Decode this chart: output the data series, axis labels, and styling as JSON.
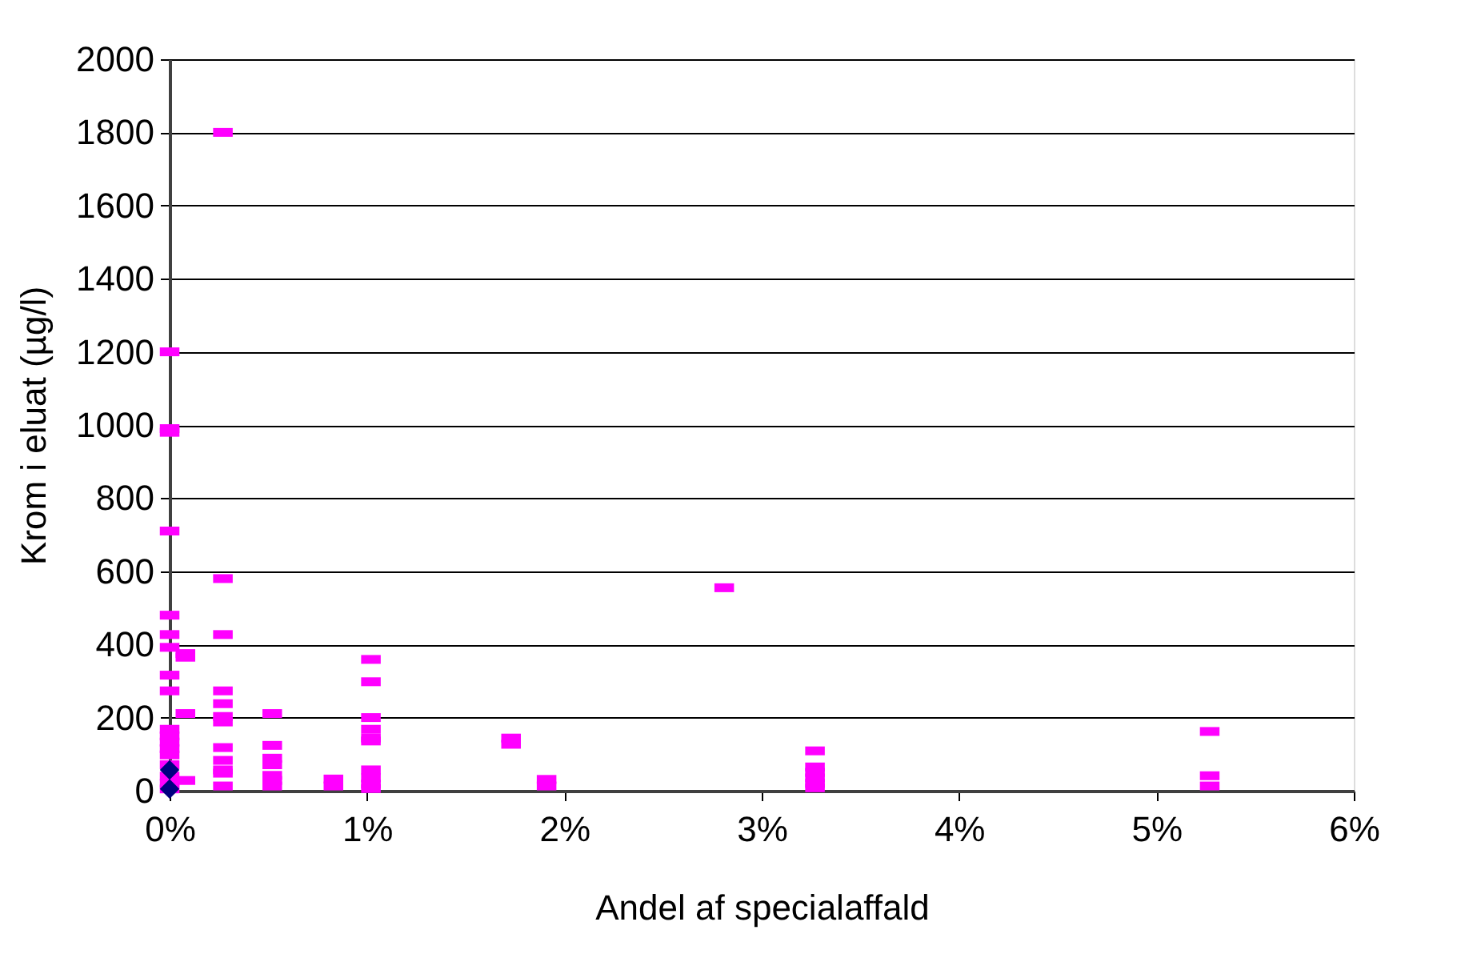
{
  "chart_data": {
    "type": "scatter",
    "xlabel": "Andel af specialaffald",
    "ylabel": "Krom i eluat (µg/l)",
    "xlim": [
      0,
      6
    ],
    "ylim": [
      0,
      2000
    ],
    "xticks": [
      {
        "value": 0,
        "label": "0%"
      },
      {
        "value": 1,
        "label": "1%"
      },
      {
        "value": 2,
        "label": "2%"
      },
      {
        "value": 3,
        "label": "3%"
      },
      {
        "value": 4,
        "label": "4%"
      },
      {
        "value": 5,
        "label": "5%"
      },
      {
        "value": 6,
        "label": "6%"
      }
    ],
    "yticks": [
      0,
      200,
      400,
      600,
      800,
      1000,
      1200,
      1400,
      1600,
      1800,
      2000
    ],
    "grid": "y",
    "series": [
      {
        "color": "#ff00ff",
        "x": [
          0,
          0,
          0,
          0,
          0,
          0,
          0,
          0,
          0,
          0,
          0,
          0,
          0,
          0,
          0,
          0,
          0,
          0,
          0.08,
          0.08,
          0.08,
          0.08,
          0.27,
          0.27,
          0.27,
          0.27,
          0.27,
          0.27,
          0.27,
          0.27,
          0.27,
          0.27,
          0.27,
          0.27,
          0.52,
          0.52,
          0.52,
          0.52,
          0.52,
          0.52,
          0.52,
          0.83,
          0.83,
          1.02,
          1.02,
          1.02,
          1.02,
          1.02,
          1.02,
          1.02,
          1.02,
          1.02,
          1.02,
          1.73,
          1.73,
          1.91,
          1.91,
          2.81,
          3.27,
          3.27,
          3.27,
          3.27,
          3.27,
          3.27,
          5.27,
          5.27,
          5.27
        ],
        "values": [
          1200,
          990,
          980,
          710,
          480,
          427,
          392,
          316,
          273,
          168,
          150,
          133,
          115,
          98,
          71,
          40,
          20,
          5,
          375,
          365,
          211,
          28,
          1800,
          580,
          427,
          273,
          238,
          203,
          188,
          118,
          83,
          57,
          48,
          13,
          211,
          124,
          89,
          71,
          42,
          28,
          13,
          32,
          13,
          359,
          298,
          200,
          168,
          144,
          136,
          57,
          35,
          18,
          6,
          144,
          127,
          31,
          13,
          555,
          109,
          65,
          50,
          35,
          20,
          8,
          162,
          41,
          13
        ]
      },
      {
        "color": "#000080",
        "marker": "diamond",
        "x": [
          0,
          0
        ],
        "values": [
          57,
          5
        ]
      }
    ]
  }
}
